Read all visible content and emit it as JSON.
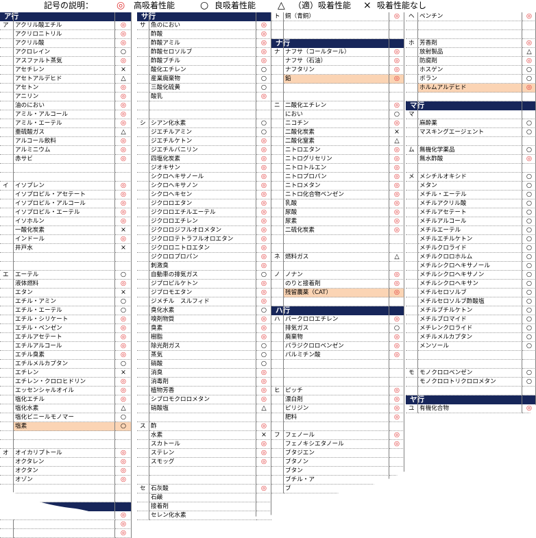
{
  "legend": {
    "title": "記号の説明：",
    "items": [
      {
        "symbol": "◎",
        "label": "高吸着性能",
        "color": "#e03030"
      },
      {
        "symbol": "○",
        "label": "良吸着性能"
      },
      {
        "symbol": "△",
        "label": "（適）吸着性能"
      },
      {
        "symbol": "×",
        "label": "吸着性能なし"
      }
    ]
  },
  "colors": {
    "header_bg": "#17265a",
    "header_text": "#ffffff",
    "highlight": "#fbd4b4",
    "excellent": "#e03030"
  },
  "columns": [
    {
      "rows": [
        {
          "t": "h",
          "text": "ア行"
        },
        {
          "i": "ア",
          "n": "アクリル酸エチル",
          "s": "◎"
        },
        {
          "n": "アクリロニトリル",
          "s": "◎"
        },
        {
          "n": "アクリル酸",
          "s": "◎"
        },
        {
          "n": "アクロレイン",
          "s": "○"
        },
        {
          "n": "アスファルト蒸気",
          "s": "◎"
        },
        {
          "n": "アセチレン",
          "s": "×"
        },
        {
          "n": "アセトアルデヒド",
          "s": "△"
        },
        {
          "n": "アセトン",
          "s": "◎"
        },
        {
          "n": "アニリン",
          "s": "◎"
        },
        {
          "n": "油のにおい",
          "s": "◎"
        },
        {
          "n": "アミル・アルコール",
          "s": "◎"
        },
        {
          "n": "アミル・エーテル",
          "s": "◎"
        },
        {
          "n": "亜硫酸ガス",
          "s": "△"
        },
        {
          "n": "アルコール飲料",
          "s": "◎"
        },
        {
          "n": "アルミニウム",
          "s": "◎"
        },
        {
          "n": "赤サビ",
          "s": "◎"
        },
        {},
        {},
        {
          "i": "イ",
          "n": "イソプレン",
          "s": "◎"
        },
        {
          "n": "イソプロピル・アセテート",
          "s": "◎"
        },
        {
          "n": "イソプロピル・アルコール",
          "s": "◎"
        },
        {
          "n": "イソプロピル・エーテル",
          "s": "◎"
        },
        {
          "n": "イソホルン",
          "s": "◎"
        },
        {
          "n": "一酸化炭素",
          "s": "×"
        },
        {
          "n": "インドール",
          "s": "◎"
        },
        {
          "n": "井戸水",
          "s": "×"
        },
        {},
        {},
        {
          "i": "エ",
          "n": "エーテル",
          "s": "○"
        },
        {
          "n": "液体燃料",
          "s": "◎"
        },
        {
          "n": "エタン",
          "s": "×"
        },
        {
          "n": "エチル・アミン",
          "s": "○"
        },
        {
          "n": "エチル・エーテル",
          "s": "○"
        },
        {
          "n": "エチル・シリケート",
          "s": "◎"
        },
        {
          "n": "エチル・ベンゼン",
          "s": "◎"
        },
        {
          "n": "エチルアセテート",
          "s": "◎"
        },
        {
          "n": "エチルアルコール",
          "s": "◎"
        },
        {
          "n": "エチル臭素",
          "s": "◎"
        },
        {
          "n": "エチルメルカプタン",
          "s": "○"
        },
        {
          "n": "エチレン",
          "s": "×"
        },
        {
          "n": "エチレン・クロロヒドリン",
          "s": "◎"
        },
        {
          "n": "エッセンシャルオイル",
          "s": "◎"
        },
        {
          "n": "塩化エチル",
          "s": "◎"
        },
        {
          "n": "塩化水素",
          "s": "△"
        },
        {
          "n": "塩化ビニールモノマー",
          "s": "○"
        },
        {
          "n": "塩素",
          "s": "○",
          "hl": true
        },
        {},
        {},
        {
          "i": "オ",
          "n": "オイカリプトール",
          "s": "◎"
        },
        {
          "n": "オクタレン",
          "s": "◎"
        },
        {
          "n": "オクタン",
          "s": "◎"
        },
        {
          "n": "オゾン",
          "s": "◎"
        },
        {},
        {},
        {
          "t": "h",
          "text": "カ行"
        },
        {
          "s": "◎"
        },
        {
          "s": "◎"
        },
        {
          "s": "◎"
        }
      ]
    },
    {
      "rows": [
        {
          "t": "h",
          "text": "サ行"
        },
        {
          "i": "サ",
          "n": "魚のにおい",
          "s": "◎"
        },
        {
          "n": "酢酸",
          "s": "◎"
        },
        {
          "n": "酢酸アミル",
          "s": "◎"
        },
        {
          "n": "酢酸セロソルブ",
          "s": "◎"
        },
        {
          "n": "酢酸ブチル",
          "s": "◎"
        },
        {
          "n": "酸化エチレン",
          "s": "○"
        },
        {
          "n": "産業廃棄物",
          "s": "○"
        },
        {
          "n": "三酸化硫黄",
          "s": "○"
        },
        {
          "n": "酸乳",
          "s": "◎"
        },
        {},
        {},
        {
          "i": "シ",
          "n": "シアン化水素",
          "s": "○"
        },
        {
          "n": "ジエチルアミン",
          "s": "○"
        },
        {
          "n": "ジエチルケトン",
          "s": "◎"
        },
        {
          "n": "ジエチルバニリン",
          "s": "◎"
        },
        {
          "n": "四塩化炭素",
          "s": "◎"
        },
        {
          "n": "ジオキサン",
          "s": "◎"
        },
        {
          "n": "シクロヘキサノール",
          "s": "◎"
        },
        {
          "n": "シクロヘキサノン",
          "s": "◎"
        },
        {
          "n": "シクロヘキセン",
          "s": "◎"
        },
        {
          "n": "ジクロロエタン",
          "s": "◎"
        },
        {
          "n": "ジクロロエチルエーテル",
          "s": "◎"
        },
        {
          "n": "ジクロロエチレン",
          "s": "◎"
        },
        {
          "n": "ジクロロジフルオロメタン",
          "s": "◎"
        },
        {
          "n": "ジクロロテトラフルオロエタン",
          "s": "◎"
        },
        {
          "n": "ジクロロニトロエタン",
          "s": "◎"
        },
        {
          "n": "ジクロロプロパン",
          "s": "◎"
        },
        {
          "n": "刺激臭",
          "s": "◎"
        },
        {
          "n": "自動車の排気ガス",
          "s": "○"
        },
        {
          "n": "ジプロピルケトン",
          "s": "◎"
        },
        {
          "n": "ジブロモエタン",
          "s": "◎"
        },
        {
          "n": "ジメチル　スルフィド",
          "s": "◎"
        },
        {
          "n": "臭化水素",
          "s": "○"
        },
        {
          "n": "嗅剤物質",
          "s": "◎"
        },
        {
          "n": "臭素",
          "s": "◎"
        },
        {
          "n": "樹脂",
          "s": "◎"
        },
        {
          "n": "除光剤ガス",
          "s": "○"
        },
        {
          "n": "蒸気",
          "s": "○"
        },
        {
          "n": "硝酸",
          "s": "○"
        },
        {
          "n": "消臭",
          "s": "◎"
        },
        {
          "n": "消毒剤",
          "s": "◎"
        },
        {
          "n": "植物芳香",
          "s": "◎"
        },
        {
          "n": "シブロモクロロメタン",
          "s": "◎"
        },
        {
          "n": "硝酸塩",
          "s": "△"
        },
        {},
        {
          "i": "ス",
          "n": "酢",
          "s": "◎"
        },
        {
          "n": "水素",
          "s": "×"
        },
        {
          "n": "スカトール",
          "s": "◎"
        },
        {
          "n": "ステレン",
          "s": "◎"
        },
        {
          "n": "スモッグ",
          "s": "◎"
        },
        {},
        {},
        {
          "i": "セ",
          "n": "石灰酸",
          "s": "◎"
        },
        {
          "n": "石鹸",
          "s": ""
        },
        {
          "n": "接着剤",
          "s": ""
        },
        {
          "n": "セレン化水素",
          "s": ""
        }
      ]
    },
    {
      "rows": [
        {
          "i": "ト",
          "n": "銅（青銅）",
          "s": "◎"
        },
        {},
        {},
        {
          "t": "h",
          "text": "ナ行"
        },
        {
          "i": "ナ",
          "n": "ナフサ（コールタール）",
          "s": "◎"
        },
        {
          "n": "ナフサ（石油）",
          "s": "◎"
        },
        {
          "n": "ナフタリン",
          "s": "◎"
        },
        {
          "n": "鉛",
          "s": "◎",
          "hl": true
        },
        {},
        {},
        {
          "i": "ニ",
          "n": "二酸化エチレン",
          "s": "◎"
        },
        {
          "n": "におい",
          "s": "○"
        },
        {
          "n": "ニコチン",
          "s": "◎"
        },
        {
          "n": "二酸化炭素",
          "s": "×"
        },
        {
          "n": "二酸化窒素",
          "s": "△"
        },
        {
          "n": "ニトロエタン",
          "s": "◎"
        },
        {
          "n": "ニトログリセリン",
          "s": "◎"
        },
        {
          "n": "ニトロトルエン",
          "s": "◎"
        },
        {
          "n": "ニトロプロパン",
          "s": "◎"
        },
        {
          "n": "ニトロメタン",
          "s": "◎"
        },
        {
          "n": "ニトロ化合物ベンゼン",
          "s": "◎"
        },
        {
          "n": "乳酸",
          "s": "◎"
        },
        {
          "n": "尿酸",
          "s": "◎"
        },
        {
          "n": "尿素",
          "s": "◎"
        },
        {
          "n": "二硫化炭素",
          "s": "◎"
        },
        {},
        {},
        {
          "i": "ネ",
          "n": "燃料ガス",
          "s": "△"
        },
        {},
        {
          "i": "ノ",
          "n": "ノナン",
          "s": "◎"
        },
        {
          "n": "のりと接着剤",
          "s": "◎"
        },
        {
          "n": "残留農薬（CAT）",
          "s": "◎",
          "hl": true
        },
        {},
        {
          "t": "h",
          "text": "ハ行"
        },
        {
          "i": "ハ",
          "n": "パークロロエチレン",
          "s": "◎"
        },
        {
          "n": "排気ガス",
          "s": "○"
        },
        {
          "n": "廃棄物",
          "s": "◎"
        },
        {
          "n": "パラジクロロベンゼン",
          "s": "◎"
        },
        {
          "n": "パルミチン酸",
          "s": "◎"
        },
        {},
        {},
        {},
        {
          "i": "ヒ",
          "n": "ピッチ",
          "s": "◎"
        },
        {
          "n": "漂白剤",
          "s": "◎"
        },
        {
          "n": "ピリジン",
          "s": "◎"
        },
        {
          "n": "肥料",
          "s": "◎"
        },
        {},
        {
          "i": "フ",
          "n": "フェノール",
          "s": "◎"
        },
        {
          "n": "フェノキシエタノール",
          "s": "◎"
        },
        {
          "n": "ブタジエン",
          "s": ""
        },
        {
          "n": "ブタノン",
          "s": ""
        },
        {
          "n": "ブタン",
          "s": ""
        },
        {
          "n": "ブチル・ア",
          "s": ""
        },
        {
          "n": "ブ",
          "s": ""
        }
      ]
    },
    {
      "rows": [
        {
          "i": "ヘ",
          "n": "ベンチン",
          "s": "◎"
        },
        {},
        {},
        {
          "i": "ホ",
          "n": "芳香剤",
          "s": "◎"
        },
        {
          "n": "放射製品",
          "s": "△"
        },
        {
          "n": "防腐剤",
          "s": "◎"
        },
        {
          "n": "ホスゲン",
          "s": "○"
        },
        {
          "n": "ボラン",
          "s": "○"
        },
        {
          "n": "ホルムアルデヒド",
          "s": "◎",
          "hl": true
        },
        {},
        {
          "t": "h",
          "text": "マ行"
        },
        {
          "i": "マ",
          "n": "",
          "s": ""
        },
        {
          "n": "麻酔薬",
          "s": "○"
        },
        {
          "n": "マスキングエージェント",
          "s": "○"
        },
        {},
        {
          "i": "ム",
          "n": "無機化学薬品",
          "s": "○"
        },
        {
          "n": "無水酢酸",
          "s": "◎"
        },
        {},
        {
          "i": "メ",
          "n": "メシチルオキシド",
          "s": "○"
        },
        {
          "n": "メタン",
          "s": "○"
        },
        {
          "n": "メチル・エーテル",
          "s": "○"
        },
        {
          "n": "メチルアクリル酸",
          "s": "○"
        },
        {
          "n": "メチルアセテート",
          "s": "○"
        },
        {
          "n": "メチルアルコール",
          "s": "○"
        },
        {
          "n": "メチルエーテル",
          "s": "○"
        },
        {
          "n": "メチルエチルケトン",
          "s": "○"
        },
        {
          "n": "メチルクロライド",
          "s": "○"
        },
        {
          "n": "メチルクロロホルム",
          "s": "○"
        },
        {
          "n": "メチルシクロヘキサノール",
          "s": "○"
        },
        {
          "n": "メチルシクロヘキサノン",
          "s": "○"
        },
        {
          "n": "メチルシクロヘキサン",
          "s": "○"
        },
        {
          "n": "メチルセロソルブ",
          "s": "○"
        },
        {
          "n": "メチルセロソルブ酢酸塩",
          "s": "○"
        },
        {
          "n": "メチルブチルケトン",
          "s": "○"
        },
        {
          "n": "メチルブロマイド",
          "s": "○"
        },
        {
          "n": "メチレンクロライド",
          "s": "○"
        },
        {
          "n": "メチルメルカプタン",
          "s": "○"
        },
        {
          "n": "メンソール",
          "s": "○"
        },
        {},
        {},
        {
          "i": "モ",
          "n": "モノクロロベンゼン",
          "s": "○"
        },
        {
          "n": "モノクロロトリクロロメタン",
          "s": "○"
        },
        {},
        {
          "t": "h",
          "text": "ヤ行"
        },
        {
          "i": "ユ",
          "n": "有機化合物",
          "s": "◎"
        }
      ]
    }
  ]
}
